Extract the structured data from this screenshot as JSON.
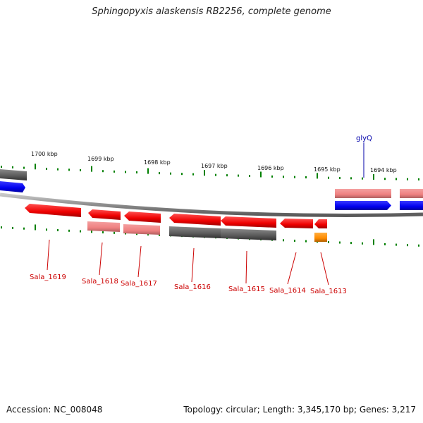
{
  "title": "Sphingopyxis alaskensis RB2256, complete genome",
  "footer": {
    "accession": "Accession: NC_008048",
    "topology": "Topology: circular; Length: 3,345,170 bp; Genes: 3,217"
  },
  "colors": {
    "red": "#ff0000",
    "pink": "#f08080",
    "gray": "#606060",
    "blue": "#0000ff",
    "orange": "#ff8c00",
    "tick": "#008000",
    "label_red": "#cc0000",
    "label_blue": "#0000aa"
  },
  "ruler_labels": [
    "1700 kbp",
    "1699 kbp",
    "1698 kbp",
    "1697 kbp",
    "1696 kbp",
    "1695 kbp",
    "1694 kbp"
  ],
  "gene_labels": {
    "sala_1619": "Sala_1619",
    "sala_1618": "Sala_1618",
    "sala_1617": "Sala_1617",
    "sala_1616": "Sala_1616",
    "sala_1615": "Sala_1615",
    "sala_1614": "Sala_1614",
    "sala_1613": "Sala_1613",
    "glyq": "glyQ"
  }
}
